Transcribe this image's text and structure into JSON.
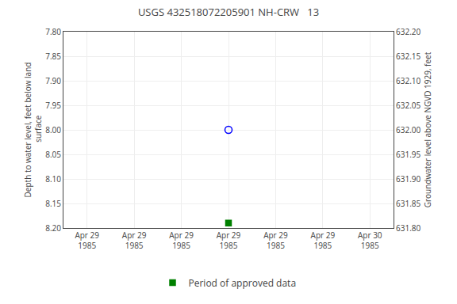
{
  "chart_data": {
    "type": "scatter",
    "title": "USGS 432518072205901 NH-CRW   13",
    "ylabel": "Depth to water level, feet below land\n surface",
    "y2label": "Groundwater level above NGVD 1929, feet",
    "categories": [
      "Apr 29\n1985",
      "Apr 29\n1985",
      "Apr 29\n1985",
      "Apr 29\n1985",
      "Apr 29\n1985",
      "Apr 29\n1985",
      "Apr 30\n1985"
    ],
    "series": [
      {
        "color": "blue",
        "marker": "circle-open",
        "values": [
          null,
          null,
          null,
          8.0,
          null,
          null,
          null
        ]
      },
      {
        "name": "Period of approved data",
        "color": "#008000",
        "marker": "square",
        "values": [
          null,
          null,
          null,
          8.19,
          null,
          null,
          null
        ]
      }
    ],
    "ylim": [
      8.2,
      7.8
    ],
    "yticks": [
      {
        "value": 7.8,
        "label": "7.80"
      },
      {
        "value": 7.85,
        "label": "7.85"
      },
      {
        "value": 7.9,
        "label": "7.90"
      },
      {
        "value": 7.95,
        "label": "7.95"
      },
      {
        "value": 8.0,
        "label": "8.00"
      },
      {
        "value": 8.05,
        "label": "8.05"
      },
      {
        "value": 8.1,
        "label": "8.10"
      },
      {
        "value": 8.15,
        "label": "8.15"
      },
      {
        "value": 8.2,
        "label": "8.20"
      }
    ],
    "y2lim": [
      631.8,
      632.2
    ],
    "y2ticks": [
      {
        "value": 631.8,
        "label": "631.80"
      },
      {
        "value": 631.85,
        "label": "631.85"
      },
      {
        "value": 631.9,
        "label": "631.90"
      },
      {
        "value": 631.95,
        "label": "631.95"
      },
      {
        "value": 632.0,
        "label": "632.00"
      },
      {
        "value": 632.05,
        "label": "632.05"
      },
      {
        "value": 632.1,
        "label": "632.10"
      },
      {
        "value": 632.15,
        "label": "632.15"
      },
      {
        "value": 632.2,
        "label": "632.20"
      }
    ],
    "grid": true,
    "legend": "bottom"
  }
}
